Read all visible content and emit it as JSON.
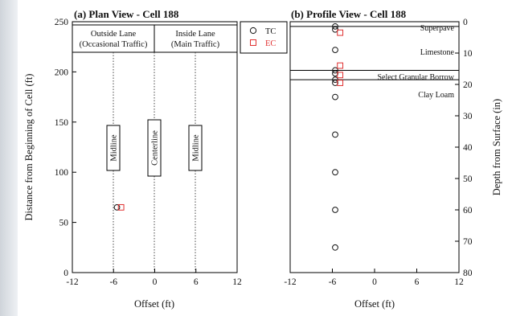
{
  "colors": {
    "tc": "#111111",
    "ec": "#e03030",
    "background_gradient": [
      "#cfd4da",
      "#eef1f4"
    ]
  },
  "plan_view": {
    "title": "(a) Plan View - Cell 188",
    "xlabel": "Offset (ft)",
    "ylabel": "Distance from Beginning of Cell (ft)",
    "x_ticks": [
      "-12",
      "-6",
      "0",
      "6",
      "12"
    ],
    "y_ticks": [
      "0",
      "50",
      "100",
      "150",
      "200",
      "250"
    ],
    "lanes": [
      {
        "line1": "Outside Lane",
        "line2": "(Occasional Traffic)"
      },
      {
        "line1": "Inside Lane",
        "line2": "(Main Traffic)"
      }
    ],
    "line_labels": [
      "Midline",
      "Centerline",
      "Midline"
    ]
  },
  "legend": [
    {
      "symbol": "circle",
      "label": "TC",
      "color": "#111111"
    },
    {
      "symbol": "square",
      "label": "EC",
      "color": "#e03030"
    }
  ],
  "profile_view": {
    "title": "(b) Profile View - Cell 188",
    "xlabel": "Offset (ft)",
    "ylabel": "Depth from Surface (in)",
    "x_ticks": [
      "-12",
      "-6",
      "0",
      "6",
      "12"
    ],
    "y_ticks": [
      "0",
      "10",
      "20",
      "30",
      "40",
      "50",
      "60",
      "70",
      "80"
    ],
    "layers": [
      "Superpave",
      "Limestone",
      "Select Granular Borrow",
      "Clay Loam"
    ]
  },
  "chart_data": {
    "type": "scatter",
    "plan": {
      "xlim": [
        -12,
        12
      ],
      "ylim": [
        0,
        250
      ],
      "x_ticks": [
        -12,
        -6,
        0,
        6,
        12
      ],
      "y_ticks": [
        0,
        50,
        100,
        150,
        200,
        250
      ],
      "lane_boundaries": [
        0,
        250
      ],
      "vertical_lines": [
        -6,
        0,
        6
      ],
      "line_label_center_y": 125,
      "tc": [
        {
          "x": -5.5,
          "y": 65
        }
      ],
      "ec": [
        {
          "x": -4.9,
          "y": 65
        }
      ]
    },
    "profile": {
      "xlim": [
        -12,
        12
      ],
      "ylim": [
        0,
        80
      ],
      "x_ticks": [
        -12,
        -6,
        0,
        6,
        12
      ],
      "y_ticks": [
        0,
        10,
        20,
        30,
        40,
        50,
        60,
        70,
        80
      ],
      "layer_boundaries": [
        1.5,
        15.5,
        18.5
      ],
      "tc": [
        {
          "x": -5.6,
          "y": 1.5
        },
        {
          "x": -5.6,
          "y": 2.5
        },
        {
          "x": -5.6,
          "y": 9
        },
        {
          "x": -5.6,
          "y": 15.5
        },
        {
          "x": -5.6,
          "y": 16.5
        },
        {
          "x": -5.6,
          "y": 18.5
        },
        {
          "x": -5.6,
          "y": 19.5
        },
        {
          "x": -5.6,
          "y": 24
        },
        {
          "x": -5.6,
          "y": 36
        },
        {
          "x": -5.6,
          "y": 48
        },
        {
          "x": -5.6,
          "y": 60
        },
        {
          "x": -5.6,
          "y": 72
        }
      ],
      "ec": [
        {
          "x": -4.9,
          "y": 3.5
        },
        {
          "x": -4.9,
          "y": 14
        },
        {
          "x": -4.9,
          "y": 17
        },
        {
          "x": -4.9,
          "y": 19.5
        }
      ]
    }
  }
}
